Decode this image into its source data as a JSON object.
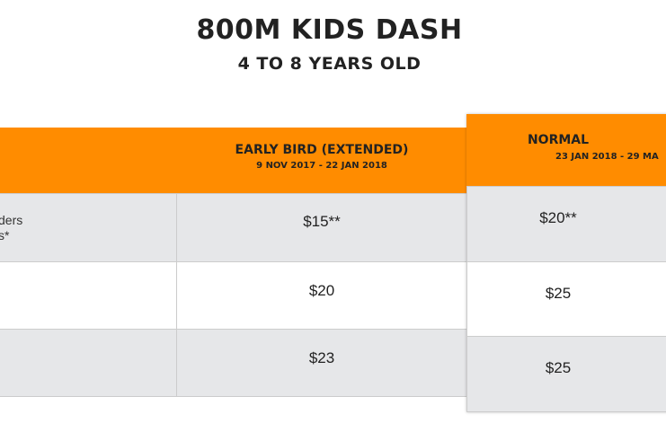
{
  "heading": {
    "title": "800M KIDS DASH",
    "subtitle": "4 TO 8 YEARS OLD"
  },
  "columns": [
    {
      "label": "",
      "dates": ""
    },
    {
      "label": "EARLY BIRD (EXTENDED)",
      "dates": "9 NOV 2017 - 22 JAN 2018"
    },
    {
      "label": "NORMAL",
      "dates": "23 JAN 2018 - 29 MA"
    }
  ],
  "rows": [
    {
      "category_line1": "ders",
      "category_line2": "s*",
      "early_bird": "$15**",
      "normal": "$20**"
    },
    {
      "category_line1": "",
      "category_line2": "",
      "early_bird": "$20",
      "normal": "$25"
    },
    {
      "category_line1": "",
      "category_line2": "",
      "early_bird": "$23",
      "normal": "$25"
    }
  ],
  "colors": {
    "accent": "#ff8c00",
    "row_grey": "#e6e7e9",
    "text": "#222222"
  }
}
